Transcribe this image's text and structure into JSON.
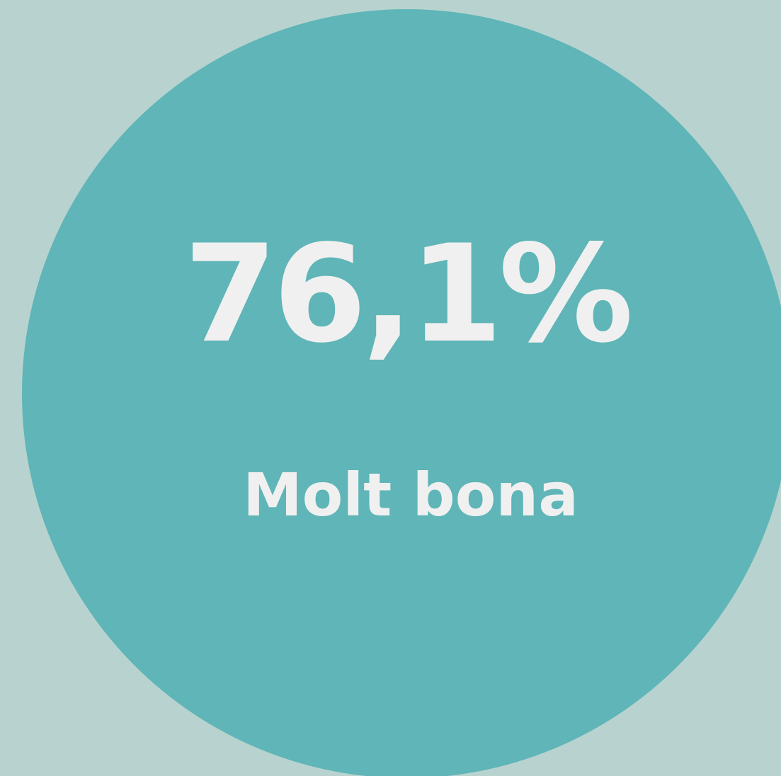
{
  "value": "76,1%",
  "label": "Molt bona"
}
